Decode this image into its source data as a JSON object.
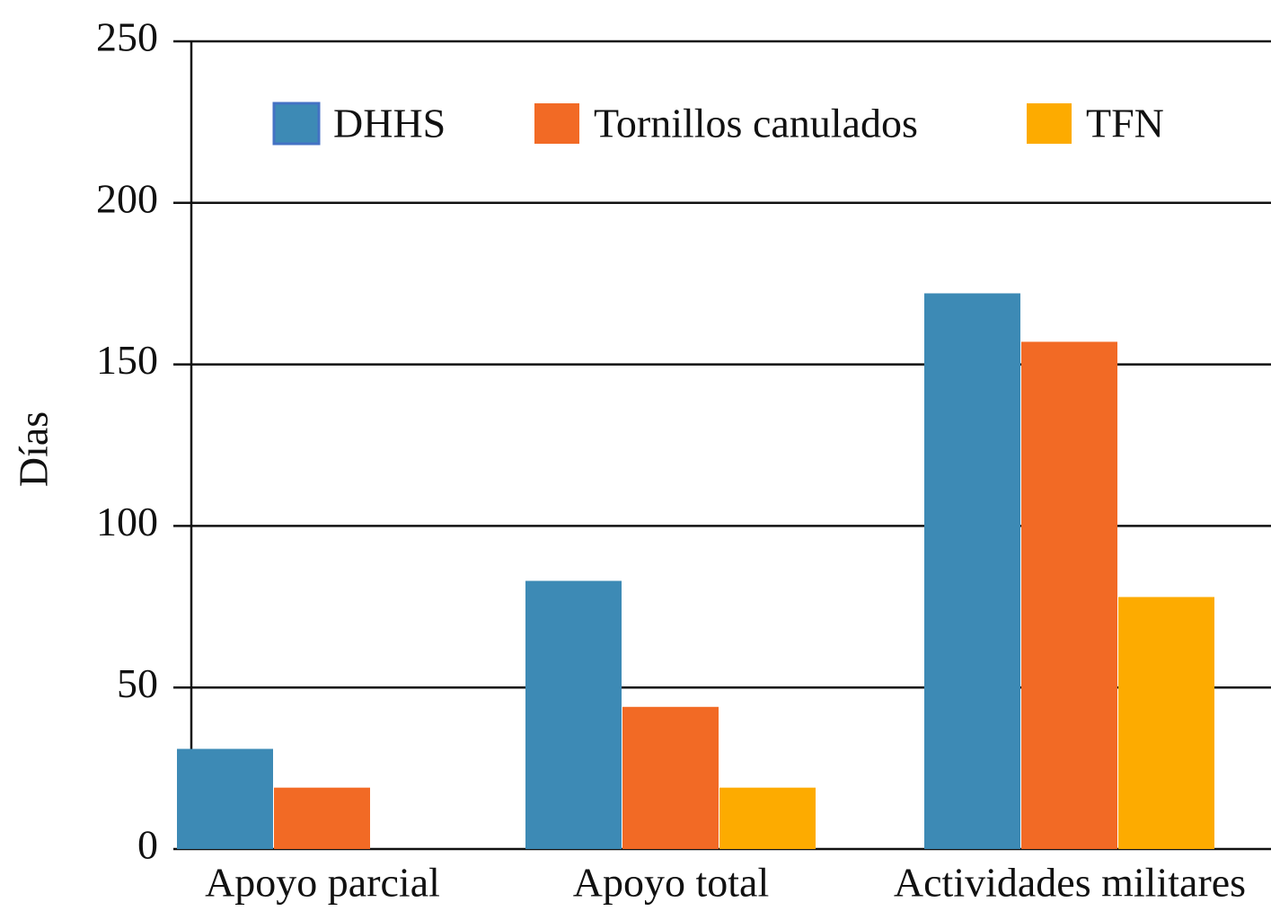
{
  "chart_data": {
    "type": "bar",
    "y_label": "Días",
    "categories": [
      "Apoyo parcial",
      "Apoyo total",
      "Actividades militares"
    ],
    "series": [
      {
        "name": "DHHS",
        "color": "#3d8ab5",
        "values": [
          31,
          83,
          172
        ]
      },
      {
        "name": "Tornillos canulados",
        "color": "#f26a25",
        "values": [
          19,
          44,
          157
        ]
      },
      {
        "name": "TFN",
        "color": "#fdab00",
        "values": [
          null,
          19,
          78
        ]
      }
    ],
    "ylim": [
      0,
      250
    ],
    "yticks": [
      0,
      50,
      100,
      150,
      200,
      250
    ],
    "grid": true,
    "legend": "top"
  }
}
